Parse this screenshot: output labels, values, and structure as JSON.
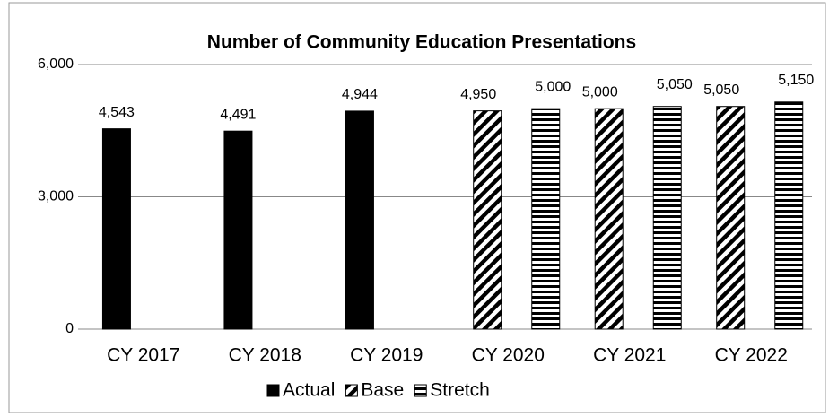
{
  "chart_data": {
    "type": "bar",
    "title": "Number of Community Education Presentations",
    "categories": [
      "CY 2017",
      "CY 2018",
      "CY 2019",
      "CY 2020",
      "CY 2021",
      "CY 2022"
    ],
    "series": [
      {
        "name": "Actual",
        "color": "#000000",
        "pattern": "solid",
        "values": [
          4543,
          4491,
          4944,
          null,
          null,
          null
        ],
        "value_labels": [
          "4,543",
          "4,491",
          "4,944",
          null,
          null,
          null
        ]
      },
      {
        "name": "Base",
        "color": "#000000",
        "pattern": "diagonal",
        "values": [
          null,
          null,
          null,
          4950,
          5000,
          5050
        ],
        "value_labels": [
          null,
          null,
          null,
          "4,950",
          "5,000",
          "5,050"
        ]
      },
      {
        "name": "Stretch",
        "color": "#000000",
        "pattern": "horizontal",
        "values": [
          null,
          null,
          null,
          5000,
          5050,
          5150
        ],
        "value_labels": [
          null,
          null,
          null,
          "5,000",
          "5,050",
          "5,150"
        ]
      }
    ],
    "ylim": [
      0,
      6000
    ],
    "yticks": [
      0,
      {
        "value": 3000,
        "label": "3,000"
      },
      {
        "value": 6000,
        "label": "6,000"
      }
    ],
    "grid": true,
    "legend": "bottom"
  }
}
